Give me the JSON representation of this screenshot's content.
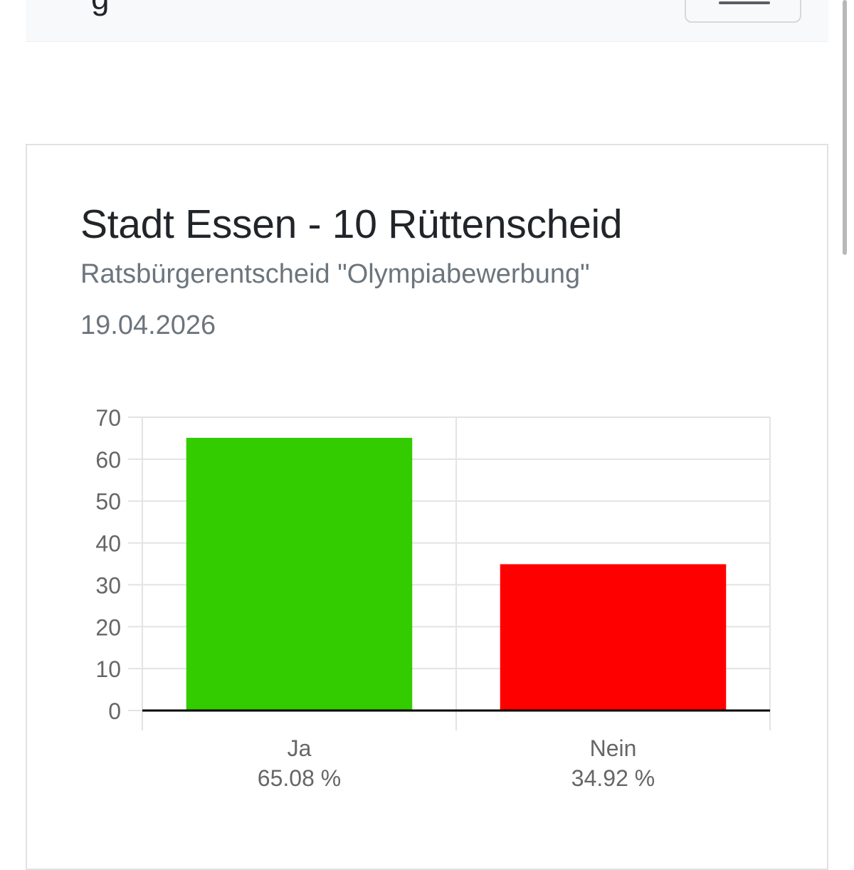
{
  "header": {
    "brand_fragment": "g",
    "toggler_icon": "hamburger-menu-icon"
  },
  "card": {
    "title": "Stadt Essen - 10 Rüttenscheid",
    "subtitle": "Ratsbürgerentscheid \"Olympiabewerbung\"",
    "date": "19.04.2026"
  },
  "chart_data": {
    "type": "bar",
    "categories": [
      "Ja",
      "Nein"
    ],
    "values": [
      65.08,
      34.92
    ],
    "value_labels": [
      "65.08 %",
      "34.92 %"
    ],
    "colors": [
      "#33cc00",
      "#ff0000"
    ],
    "ylim": [
      0,
      70
    ],
    "yticks": [
      0,
      10,
      20,
      30,
      40,
      50,
      60,
      70
    ],
    "grid": true,
    "legend": "none",
    "title": "",
    "xlabel": "",
    "ylabel": ""
  }
}
